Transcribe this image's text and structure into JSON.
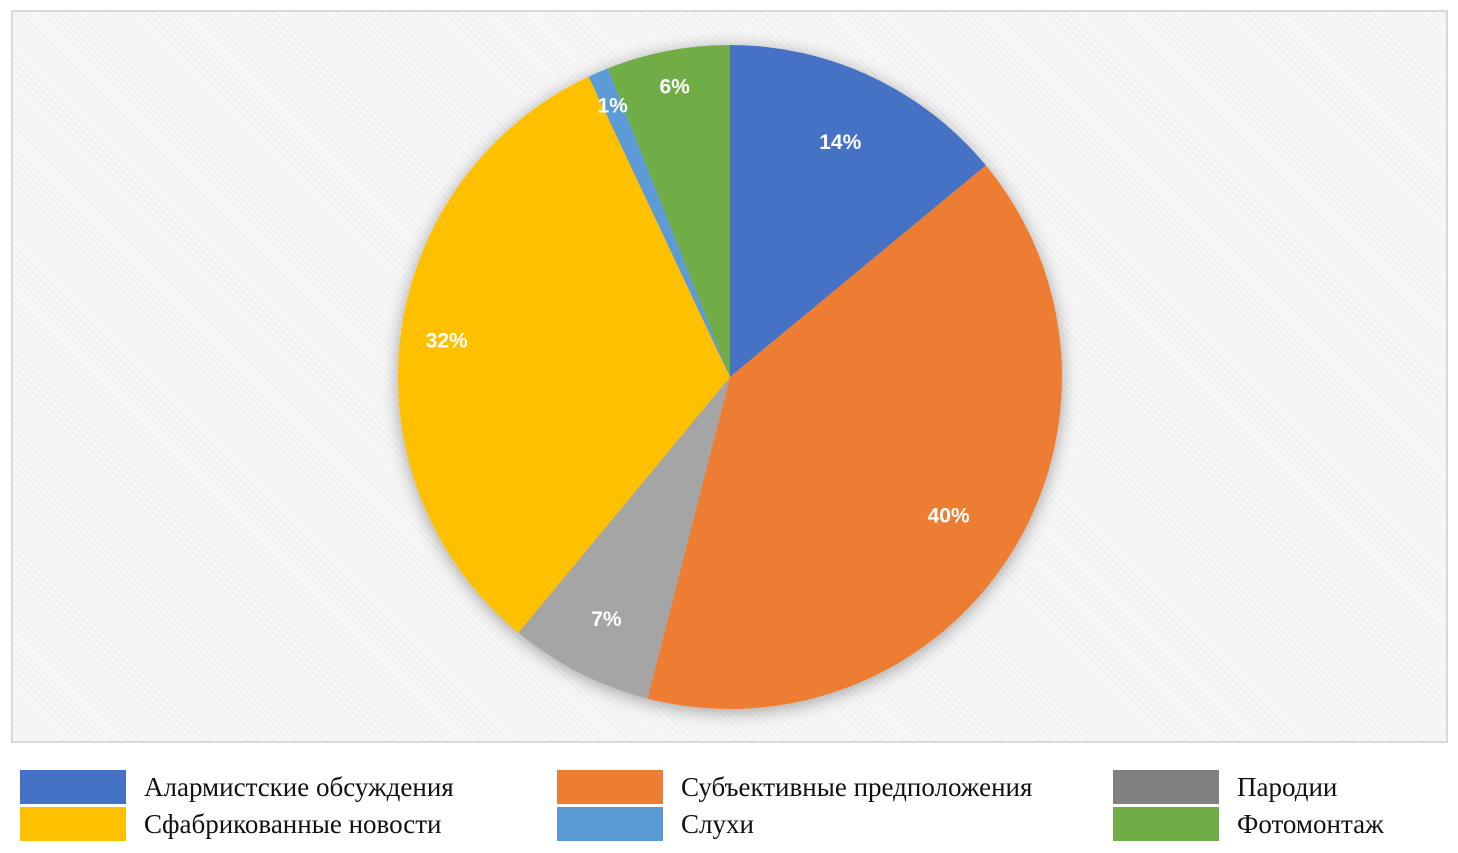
{
  "chart_data": {
    "type": "pie",
    "slices": [
      {
        "name": "Алармистские обсуждения",
        "value": 14,
        "label": "14%",
        "color": "#4472C4"
      },
      {
        "name": "Субъективные предположения",
        "value": 40,
        "label": "40%",
        "color": "#ED7D31"
      },
      {
        "name": "Пародии",
        "value": 7,
        "label": "7%",
        "color": "#A5A5A5"
      },
      {
        "name": "Сфабрикованные новости",
        "value": 32,
        "label": "32%",
        "color": "#FFC000"
      },
      {
        "name": "Слухи",
        "value": 1,
        "label": "1%",
        "color": "#5B9BD5"
      },
      {
        "name": "Фотомонтаж",
        "value": 6,
        "label": "6%",
        "color": "#70AD47"
      }
    ],
    "start_angle_deg": 0,
    "direction": "clockwise",
    "legend_position": "bottom",
    "legend": [
      {
        "label": "Алармистские обсуждения",
        "color": "#4472C4"
      },
      {
        "label": "Субъективные предположения",
        "color": "#ED7D31"
      },
      {
        "label": "Пародии",
        "color": "#808080"
      },
      {
        "label": "Сфабрикованные новости",
        "color": "#FFC000"
      },
      {
        "label": "Слухи",
        "color": "#5B9BD5"
      },
      {
        "label": "Фотомонтаж",
        "color": "#70AD47"
      }
    ]
  }
}
